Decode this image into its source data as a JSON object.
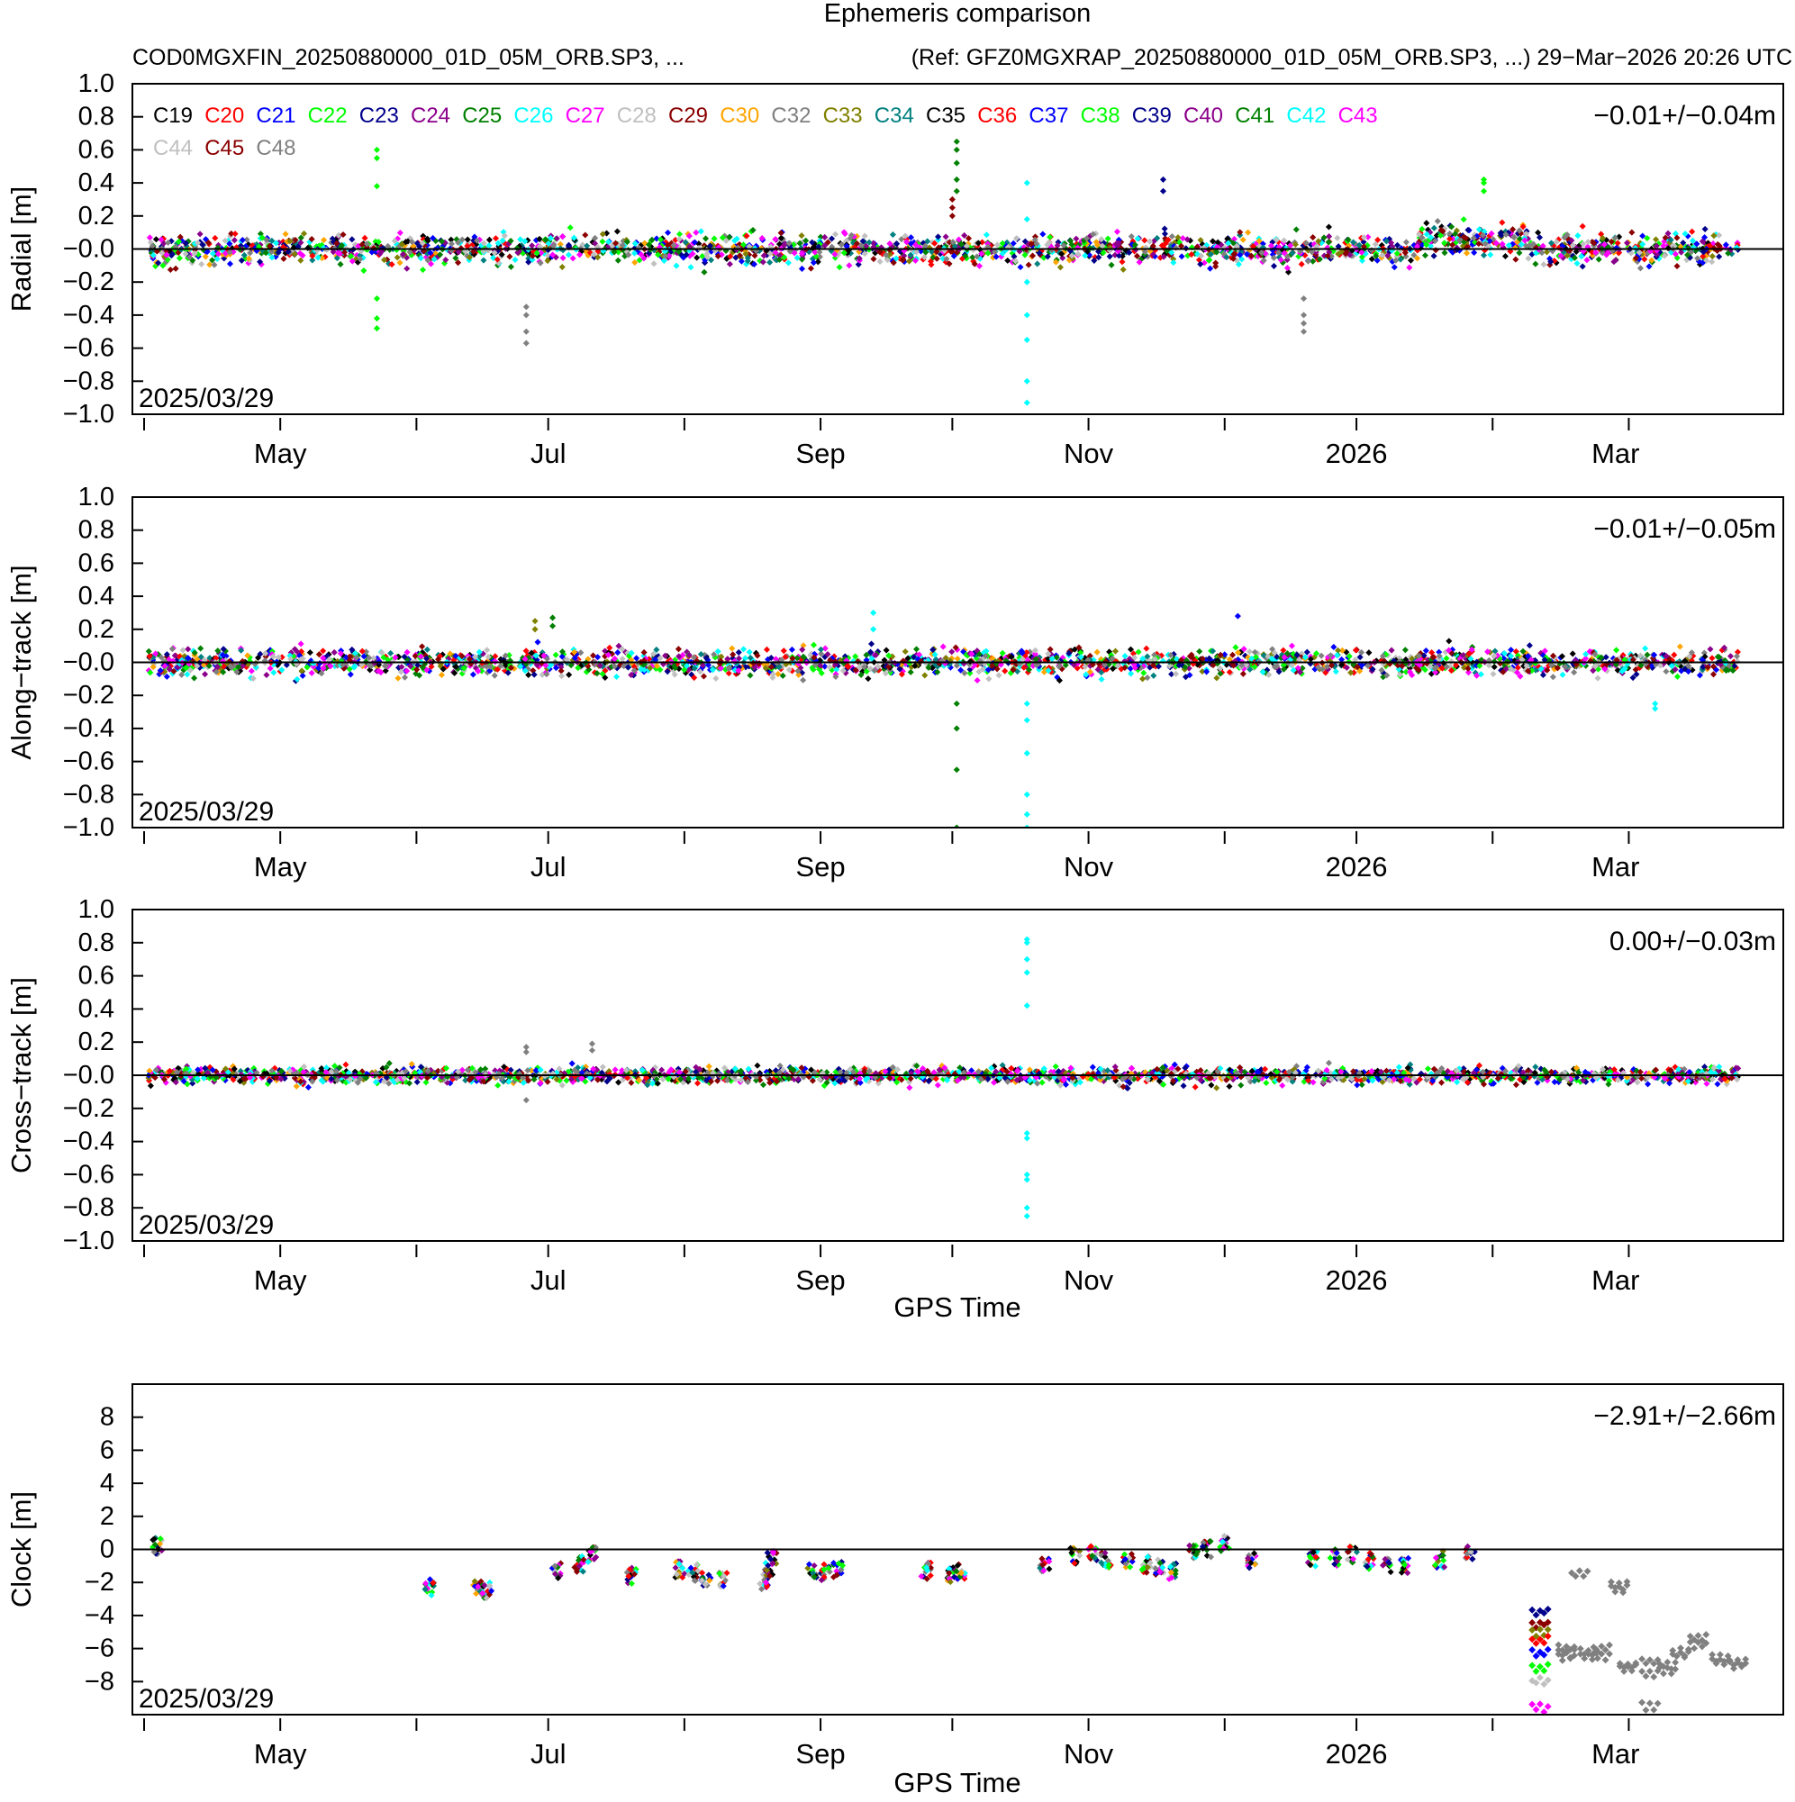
{
  "chart_data": {
    "type": "scatter",
    "title": "Ephemeris comparison",
    "subtitle_left": "COD0MGXFIN_20250880000_01D_05M_ORB.SP3, ...",
    "subtitle_right": "(Ref: GFZ0MGXRAP_20250880000_01D_05M_ORB.SP3, ...) 29−Mar−2026 20:26 UTC",
    "start_label": "2025/03/29",
    "x_days_range": [
      0,
      366
    ],
    "x_ticks_minor_days": [
      0,
      31,
      62,
      92,
      123,
      154,
      184,
      215,
      246,
      276,
      307,
      338
    ],
    "x_ticks_major": [
      {
        "day": 31,
        "label": "May"
      },
      {
        "day": 92,
        "label": "Jul"
      },
      {
        "day": 154,
        "label": "Sep"
      },
      {
        "day": 215,
        "label": "Nov"
      },
      {
        "day": 276,
        "label": "2026"
      },
      {
        "day": 335,
        "label": "Mar"
      }
    ],
    "xlabel": "GPS Time",
    "legend": [
      {
        "name": "C19",
        "color": "#000000"
      },
      {
        "name": "C20",
        "color": "#ff0000"
      },
      {
        "name": "C21",
        "color": "#0000ff"
      },
      {
        "name": "C22",
        "color": "#00ff00"
      },
      {
        "name": "C23",
        "color": "#00008b"
      },
      {
        "name": "C24",
        "color": "#8b008b"
      },
      {
        "name": "C25",
        "color": "#008000"
      },
      {
        "name": "C26",
        "color": "#00ffff"
      },
      {
        "name": "C27",
        "color": "#ff00ff"
      },
      {
        "name": "C28",
        "color": "#c0c0c0"
      },
      {
        "name": "C29",
        "color": "#8b0000"
      },
      {
        "name": "C30",
        "color": "#ffa500"
      },
      {
        "name": "C32",
        "color": "#808080"
      },
      {
        "name": "C33",
        "color": "#808000"
      },
      {
        "name": "C34",
        "color": "#008080"
      },
      {
        "name": "C35",
        "color": "#000000"
      },
      {
        "name": "C36",
        "color": "#ff0000"
      },
      {
        "name": "C37",
        "color": "#0000ff"
      },
      {
        "name": "C38",
        "color": "#00ff00"
      },
      {
        "name": "C39",
        "color": "#00008b"
      },
      {
        "name": "C40",
        "color": "#8b008b"
      },
      {
        "name": "C41",
        "color": "#008000"
      },
      {
        "name": "C42",
        "color": "#00ffff"
      },
      {
        "name": "C43",
        "color": "#ff00ff"
      },
      {
        "name": "C44",
        "color": "#c0c0c0"
      },
      {
        "name": "C45",
        "color": "#8b0000"
      },
      {
        "name": "C48",
        "color": "#808080"
      }
    ],
    "panels": [
      {
        "id": "radial",
        "ylabel": "Radial [m]",
        "ylim": [
          -1.0,
          1.0
        ],
        "yticks": [
          "1.0",
          "0.8",
          "0.6",
          "0.4",
          "0.2",
          "−0.0",
          "−0.2",
          "−0.4",
          "−0.6",
          "−0.8",
          "−1.0"
        ],
        "stat": "−0.01+/−0.04m",
        "spread": 0.09,
        "outliers": [
          {
            "day": 53,
            "values": [
              0.6,
              0.55,
              0.38,
              -0.3,
              -0.42,
              -0.48
            ],
            "color": "#00ff00"
          },
          {
            "day": 87,
            "values": [
              -0.35,
              -0.4,
              -0.5,
              -0.57
            ],
            "color": "#808080"
          },
          {
            "day": 184,
            "values": [
              0.3,
              0.25,
              0.2
            ],
            "color": "#8b0000"
          },
          {
            "day": 185,
            "values": [
              0.65,
              0.6,
              0.52,
              0.42,
              0.35
            ],
            "color": "#008000"
          },
          {
            "day": 201,
            "values": [
              0.4,
              0.18,
              -0.2,
              -0.4,
              -0.55,
              -0.8,
              -0.93
            ],
            "color": "#00ffff"
          },
          {
            "day": 264,
            "values": [
              -0.3,
              -0.4,
              -0.45,
              -0.5
            ],
            "color": "#808080"
          },
          {
            "day": 232,
            "values": [
              0.35,
              0.42
            ],
            "color": "#00008b"
          },
          {
            "day": 305,
            "values": [
              0.35,
              0.42,
              0.4
            ],
            "color": "#00ff00"
          }
        ]
      },
      {
        "id": "along",
        "ylabel": "Along−track [m]",
        "ylim": [
          -1.0,
          1.0
        ],
        "yticks": [
          "1.0",
          "0.8",
          "0.6",
          "0.4",
          "0.2",
          "−0.0",
          "−0.2",
          "−0.4",
          "−0.6",
          "−0.8",
          "−1.0"
        ],
        "stat": "−0.01+/−0.05m",
        "spread": 0.08,
        "outliers": [
          {
            "day": 185,
            "values": [
              -0.25,
              -0.4,
              -0.65,
              -1.0
            ],
            "color": "#008000"
          },
          {
            "day": 201,
            "values": [
              -0.25,
              -0.35,
              -0.55,
              -0.8,
              -0.92,
              -1.0
            ],
            "color": "#00ffff"
          },
          {
            "day": 166,
            "values": [
              0.3,
              0.2
            ],
            "color": "#00ffff"
          },
          {
            "day": 89,
            "values": [
              0.25,
              0.2
            ],
            "color": "#808000"
          },
          {
            "day": 93,
            "values": [
              0.27,
              0.22
            ],
            "color": "#008000"
          },
          {
            "day": 249,
            "values": [
              0.28
            ],
            "color": "#0000ff"
          },
          {
            "day": 344,
            "values": [
              -0.25,
              -0.28
            ],
            "color": "#00ffff"
          }
        ]
      },
      {
        "id": "cross",
        "ylabel": "Cross−track [m]",
        "ylim": [
          -1.0,
          1.0
        ],
        "yticks": [
          "1.0",
          "0.8",
          "0.6",
          "0.4",
          "0.2",
          "−0.0",
          "−0.2",
          "−0.4",
          "−0.6",
          "−0.8",
          "−1.0"
        ],
        "stat": "0.00+/−0.03m",
        "spread": 0.05,
        "outliers": [
          {
            "day": 201,
            "values": [
              0.82,
              0.8,
              0.7,
              0.62,
              0.42,
              -0.35,
              -0.38,
              -0.6,
              -0.63,
              -0.8,
              -0.85
            ],
            "color": "#00ffff"
          },
          {
            "day": 87,
            "values": [
              0.17,
              0.14,
              -0.15
            ],
            "color": "#808080"
          },
          {
            "day": 102,
            "values": [
              0.19,
              0.15
            ],
            "color": "#808080"
          }
        ]
      },
      {
        "id": "clock",
        "ylabel": "Clock [m]",
        "ylim": [
          -10,
          10
        ],
        "yticks": [
          "8",
          "6",
          "4",
          "2",
          "0",
          "−2",
          "−4",
          "−6",
          "−8"
        ],
        "ytick_values": [
          8,
          6,
          4,
          2,
          0,
          -2,
          -4,
          -6,
          -8
        ],
        "stat": "−2.91+/−2.66m",
        "clusters": [
          {
            "day": 3,
            "value": 0.2
          },
          {
            "day": 65,
            "value": -2.3
          },
          {
            "day": 76,
            "value": -2.4
          },
          {
            "day": 78,
            "value": -2.5
          },
          {
            "day": 94,
            "value": -1.3
          },
          {
            "day": 99,
            "value": -0.9
          },
          {
            "day": 102,
            "value": -0.3
          },
          {
            "day": 111,
            "value": -1.6
          },
          {
            "day": 122,
            "value": -1.2
          },
          {
            "day": 125,
            "value": -1.4
          },
          {
            "day": 128,
            "value": -1.8
          },
          {
            "day": 132,
            "value": -1.8
          },
          {
            "day": 141,
            "value": -2.0
          },
          {
            "day": 142,
            "value": -1.3
          },
          {
            "day": 143,
            "value": -0.6
          },
          {
            "day": 152,
            "value": -1.3
          },
          {
            "day": 155,
            "value": -1.4
          },
          {
            "day": 158,
            "value": -1.2
          },
          {
            "day": 178,
            "value": -1.3
          },
          {
            "day": 184,
            "value": -1.5
          },
          {
            "day": 186,
            "value": -1.4
          },
          {
            "day": 205,
            "value": -0.9
          },
          {
            "day": 212,
            "value": -0.4
          },
          {
            "day": 216,
            "value": -0.2
          },
          {
            "day": 219,
            "value": -0.6
          },
          {
            "day": 224,
            "value": -0.7
          },
          {
            "day": 228,
            "value": -0.9
          },
          {
            "day": 231,
            "value": -1.1
          },
          {
            "day": 234,
            "value": -1.3
          },
          {
            "day": 239,
            "value": -0.2
          },
          {
            "day": 242,
            "value": 0.0
          },
          {
            "day": 246,
            "value": 0.4
          },
          {
            "day": 252,
            "value": -0.7
          },
          {
            "day": 266,
            "value": -0.6
          },
          {
            "day": 271,
            "value": -0.5
          },
          {
            "day": 275,
            "value": -0.3
          },
          {
            "day": 279,
            "value": -0.7
          },
          {
            "day": 283,
            "value": -0.9
          },
          {
            "day": 287,
            "value": -1.0
          },
          {
            "day": 295,
            "value": -0.6
          },
          {
            "day": 302,
            "value": -0.2
          }
        ],
        "late_groups": [
          {
            "day": 316,
            "values": [
              -3.8,
              -4.5,
              -5.0,
              -5.5,
              -6.3,
              -7.2,
              -8.0,
              -9.6
            ]
          },
          {
            "day": 322,
            "values": [
              -6.3,
              -6.5,
              -6.0
            ]
          },
          {
            "day": 325,
            "values": [
              -1.5
            ]
          },
          {
            "day": 327,
            "values": [
              -6.5,
              -6.2
            ]
          },
          {
            "day": 330,
            "values": [
              -6.5,
              -6.0
            ]
          },
          {
            "day": 334,
            "values": [
              -2.4,
              -2.2
            ]
          },
          {
            "day": 336,
            "values": [
              -7.2,
              -7.0
            ]
          },
          {
            "day": 341,
            "values": [
              -6.8,
              -7.5,
              -9.5
            ]
          },
          {
            "day": 345,
            "values": [
              -7.4,
              -7.0
            ]
          },
          {
            "day": 348,
            "values": [
              -6.2,
              -6.4
            ]
          },
          {
            "day": 352,
            "values": [
              -5.8,
              -5.4
            ]
          },
          {
            "day": 357,
            "values": [
              -6.8,
              -6.6
            ]
          },
          {
            "day": 361,
            "values": [
              -7.0,
              -6.8
            ]
          }
        ]
      }
    ]
  }
}
